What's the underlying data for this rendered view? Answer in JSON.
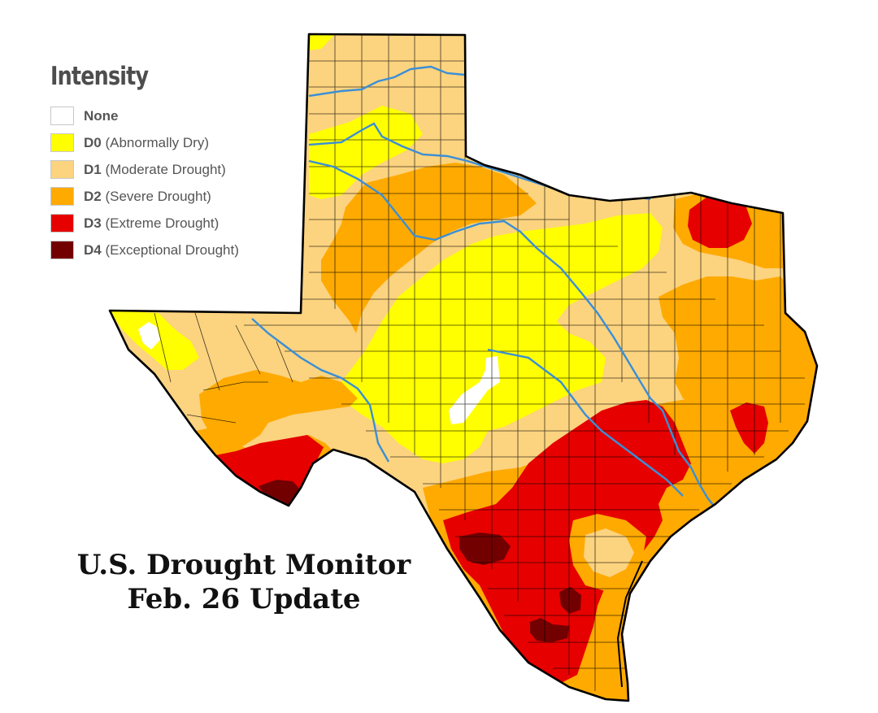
{
  "legend": {
    "title": "Intensity",
    "items": [
      {
        "code": "None",
        "label": "",
        "color": "#ffffff"
      },
      {
        "code": "D0",
        "label": "(Abnormally Dry)",
        "color": "#ffff00"
      },
      {
        "code": "D1",
        "label": "(Moderate Drought)",
        "color": "#fcd37f"
      },
      {
        "code": "D2",
        "label": "(Severe Drought)",
        "color": "#ffaa00"
      },
      {
        "code": "D3",
        "label": "(Extreme Drought)",
        "color": "#e60000"
      },
      {
        "code": "D4",
        "label": "(Exceptional Drought)",
        "color": "#730000"
      }
    ]
  },
  "caption": {
    "line1": "U.S. Drought Monitor",
    "line2": "Feb. 26 Update"
  },
  "map": {
    "region": "Texas",
    "colors": {
      "none": "#ffffff",
      "d0": "#ffff00",
      "d1": "#fcd37f",
      "d2": "#ffaa00",
      "d3": "#e60000",
      "d4": "#730000",
      "river": "#3a8fd6",
      "border": "#000000"
    }
  }
}
